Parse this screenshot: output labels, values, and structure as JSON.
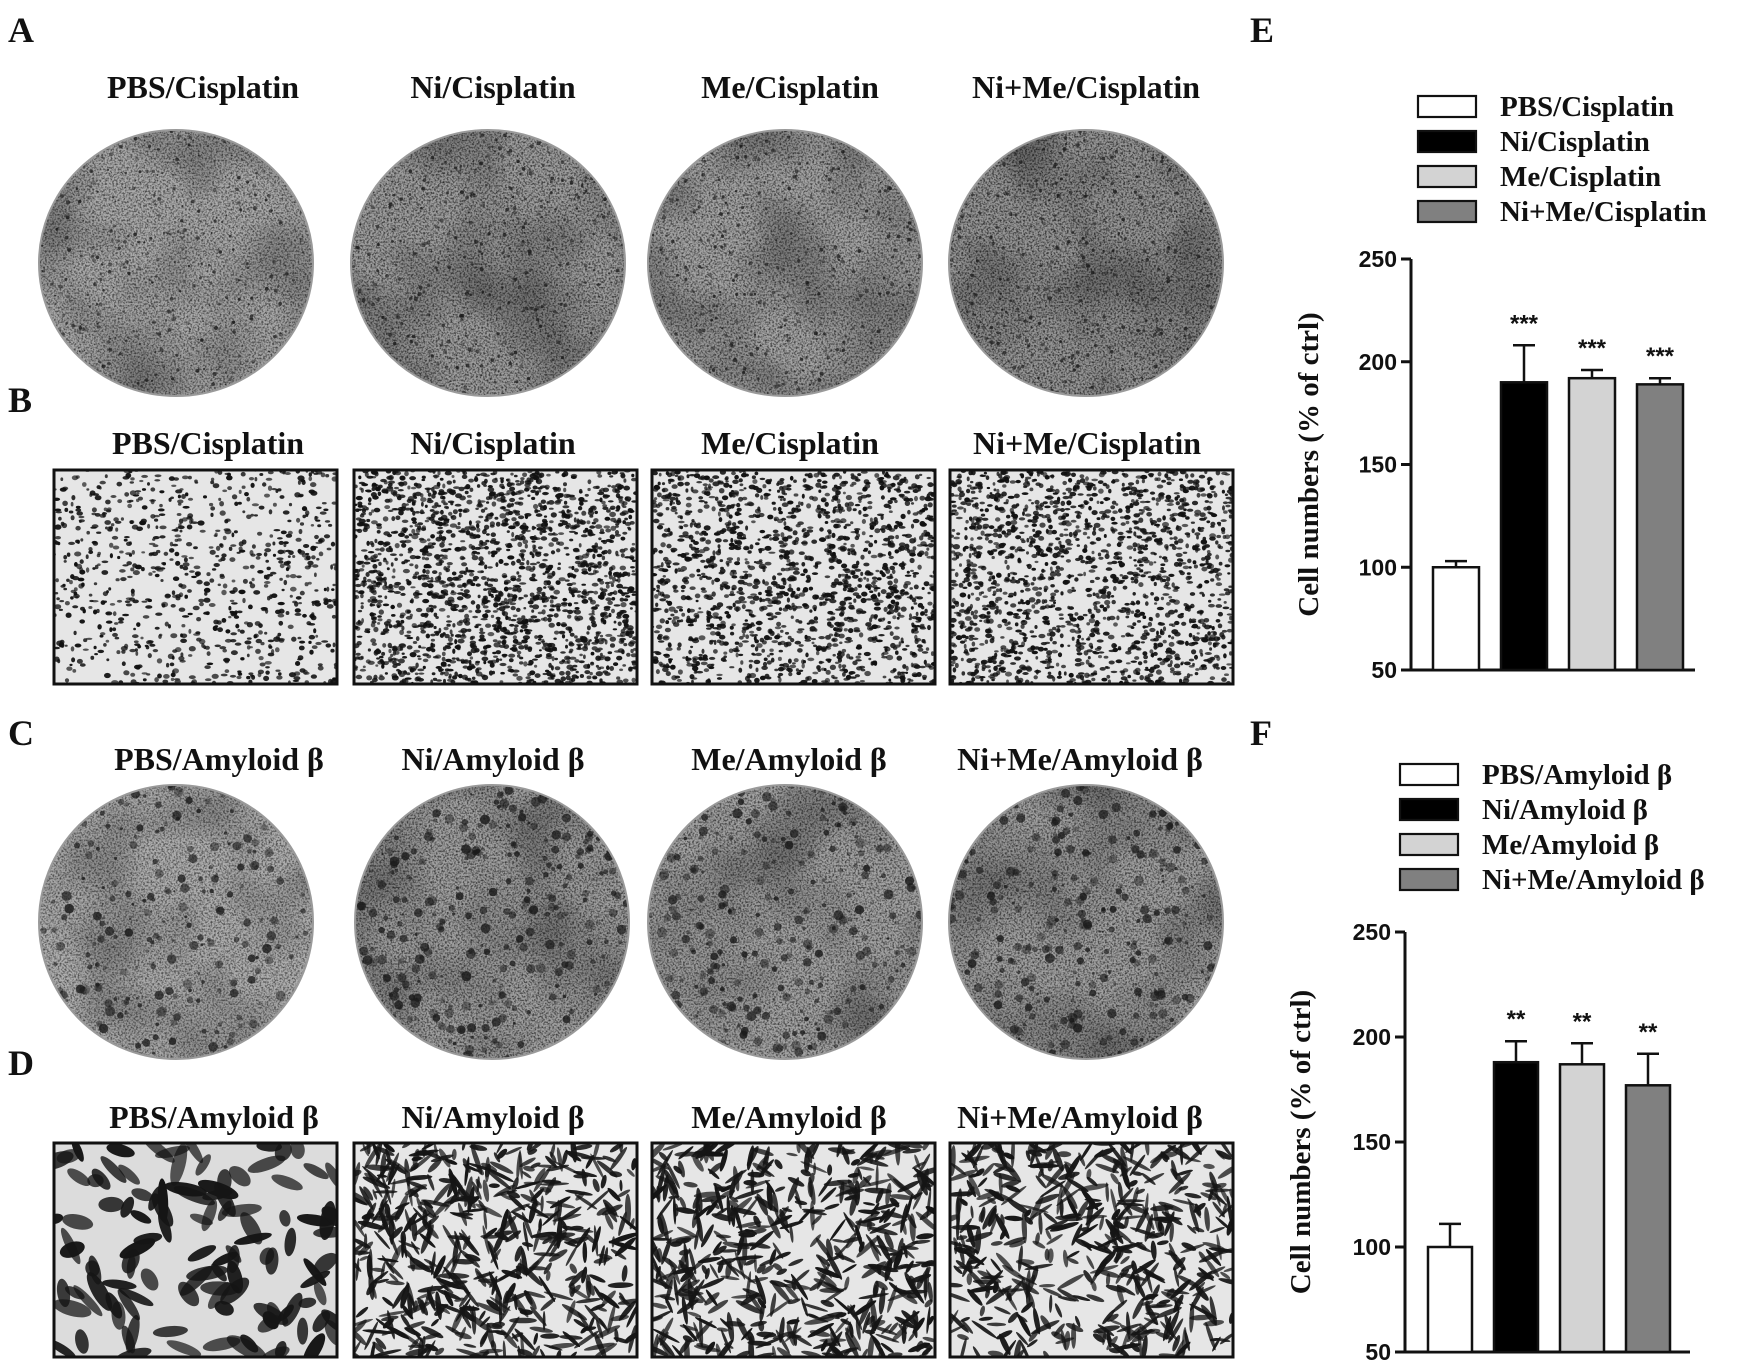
{
  "panels": {
    "A": {
      "letter": "A",
      "labels": [
        "PBS/Cisplatin",
        "Ni/Cisplatin",
        "Me/Cisplatin",
        "Ni+Me/Cisplatin"
      ],
      "image_type": "colony-dish",
      "density": [
        0.38,
        0.52,
        0.45,
        0.62
      ]
    },
    "B": {
      "letter": "B",
      "labels": [
        "PBS/Cisplatin",
        "Ni/Cisplatin",
        "Me/Cisplatin",
        "Ni+Me/Cisplatin"
      ],
      "image_type": "microscopy-field",
      "density": [
        0.25,
        0.75,
        0.6,
        0.62
      ]
    },
    "C": {
      "letter": "C",
      "labels": [
        "PBS/Amyloid β",
        "Ni/Amyloid β",
        "Me/Amyloid β",
        "Ni+Me/Amyloid β"
      ],
      "image_type": "colony-dish",
      "density": [
        0.32,
        0.5,
        0.46,
        0.5
      ]
    },
    "D": {
      "letter": "D",
      "labels": [
        "PBS/Amyloid β",
        "Ni/Amyloid β",
        "Me/Amyloid β",
        "Ni+Me/Amyloid β"
      ],
      "image_type": "microscopy-field",
      "density": [
        0.08,
        0.55,
        0.55,
        0.5
      ]
    },
    "E": {
      "letter": "E"
    },
    "F": {
      "letter": "F"
    }
  },
  "chart_data": [
    {
      "panel": "E",
      "type": "bar",
      "categories": [
        "PBS/Cisplatin",
        "Ni/Cisplatin",
        "Me/Cisplatin",
        "Ni+Me/Cisplatin"
      ],
      "legend": [
        "PBS/Cisplatin",
        "Ni/Cisplatin",
        "Me/Cisplatin",
        "Ni+Me/Cisplatin"
      ],
      "values": [
        100,
        190,
        192,
        189
      ],
      "errors": [
        3,
        18,
        4,
        3
      ],
      "significance": [
        "",
        "***",
        "***",
        "***"
      ],
      "bar_colors": [
        "#ffffff",
        "#000000",
        "#d3d3d3",
        "#808080"
      ],
      "title": "",
      "xlabel": "",
      "ylabel": "Cell numbers (% of ctrl)",
      "ylim": [
        50,
        250
      ],
      "yticks": [
        50,
        100,
        150,
        200,
        250
      ],
      "legend_position": "top"
    },
    {
      "panel": "F",
      "type": "bar",
      "categories": [
        "PBS/Amyloid β",
        "Ni/Amyloid β",
        "Me/Amyloid β",
        "Ni+Me/Amyloid β"
      ],
      "legend": [
        "PBS/Amyloid β",
        "Ni/Amyloid β",
        "Me/Amyloid β",
        "Ni+Me/Amyloid β"
      ],
      "values": [
        100,
        188,
        187,
        177
      ],
      "errors": [
        11,
        10,
        10,
        15
      ],
      "significance": [
        "",
        "**",
        "**",
        "**"
      ],
      "bar_colors": [
        "#ffffff",
        "#000000",
        "#d3d3d3",
        "#808080"
      ],
      "title": "",
      "xlabel": "",
      "ylabel": "Cell numbers (% of ctrl)",
      "ylim": [
        50,
        250
      ],
      "yticks": [
        50,
        100,
        150,
        200,
        250
      ],
      "legend_position": "top"
    }
  ]
}
